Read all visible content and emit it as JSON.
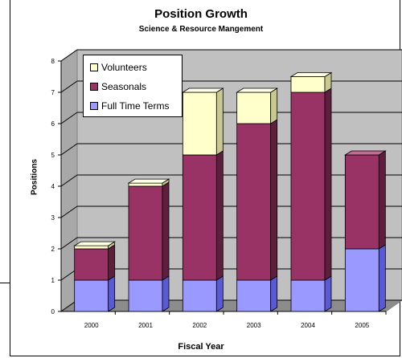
{
  "chart_data": {
    "type": "bar",
    "stacked": true,
    "title": "Position Growth",
    "subtitle": "Science & Resource Mangement",
    "xlabel": "Fiscal Year",
    "ylabel": "Positions",
    "categories": [
      "2000",
      "2001",
      "2002",
      "2003",
      "2004",
      "2005"
    ],
    "ylim": [
      0,
      8
    ],
    "yticks": [
      "0",
      "1",
      "2",
      "3",
      "4",
      "5",
      "6",
      "7",
      "8"
    ],
    "grid": true,
    "legend_position": "top-left",
    "series": [
      {
        "name": "Full Time Terms",
        "values": [
          1,
          1,
          1,
          1,
          1,
          2
        ],
        "color": "#9999ff",
        "side": "#5a5ad6",
        "top": "#c8c8ff"
      },
      {
        "name": "Seasonals",
        "values": [
          1,
          3,
          4,
          5,
          6,
          3
        ],
        "color": "#993366",
        "side": "#5e1f3f",
        "top": "#c26b94"
      },
      {
        "name": "Volunteers",
        "values": [
          0.1,
          0.1,
          2,
          1,
          0.5,
          0
        ],
        "color": "#ffffcc",
        "side": "#c9c98f",
        "top": "#ffffe6"
      }
    ],
    "legend_order": [
      "Volunteers",
      "Seasonals",
      "Full Time Terms"
    ]
  }
}
